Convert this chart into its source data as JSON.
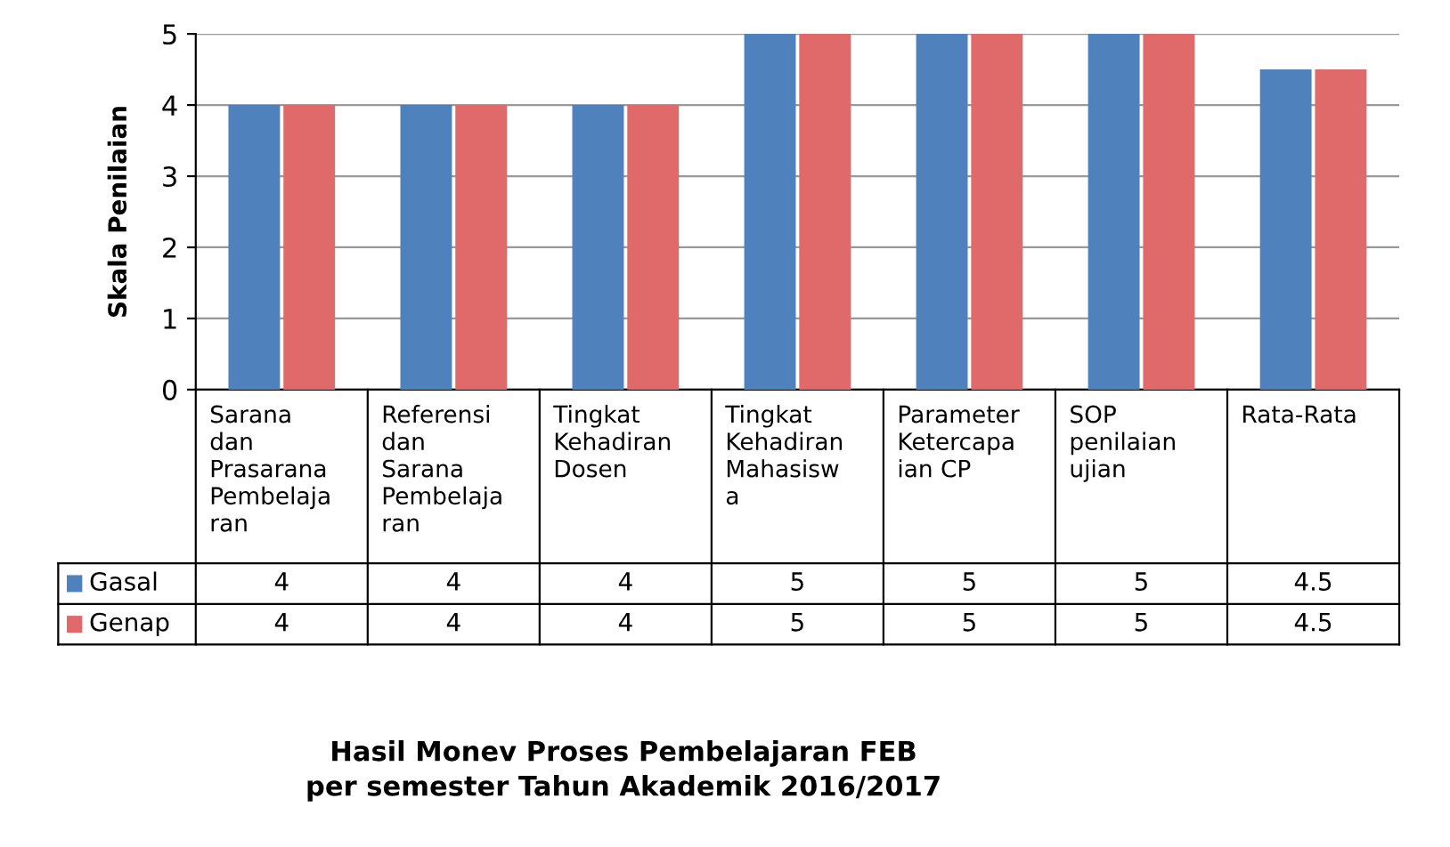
{
  "chart_data": {
    "type": "bar",
    "title": "Hasil Monev Proses Pembelajaran FEB\nper semester Tahun Akademik 2016/2017",
    "ylabel": "Skala Penilaian",
    "categories": [
      "Sarana\ndan\nPrasarana\nPembelaja\nran",
      "Referensi\ndan\nSarana\nPembelaja\nran",
      "Tingkat\nKehadiran\nDosen",
      "Tingkat\nKehadiran\nMahasisw\na",
      "Parameter\nKetercapa\nian CP",
      "SOP\npenilaian\nujian",
      "Rata-Rata"
    ],
    "series": [
      {
        "name": "Gasal",
        "color": "#4f81bd",
        "values": [
          4,
          4,
          4,
          5,
          5,
          5,
          4.5
        ]
      },
      {
        "name": "Genap",
        "color": "#e06a6a",
        "values": [
          4,
          4,
          4,
          5,
          5,
          5,
          4.5
        ]
      }
    ],
    "ylim": [
      0,
      5
    ],
    "yticks": [
      0,
      1,
      2,
      3,
      4,
      5
    ],
    "grid": "y",
    "legend": "bottom",
    "data_labels": true
  }
}
